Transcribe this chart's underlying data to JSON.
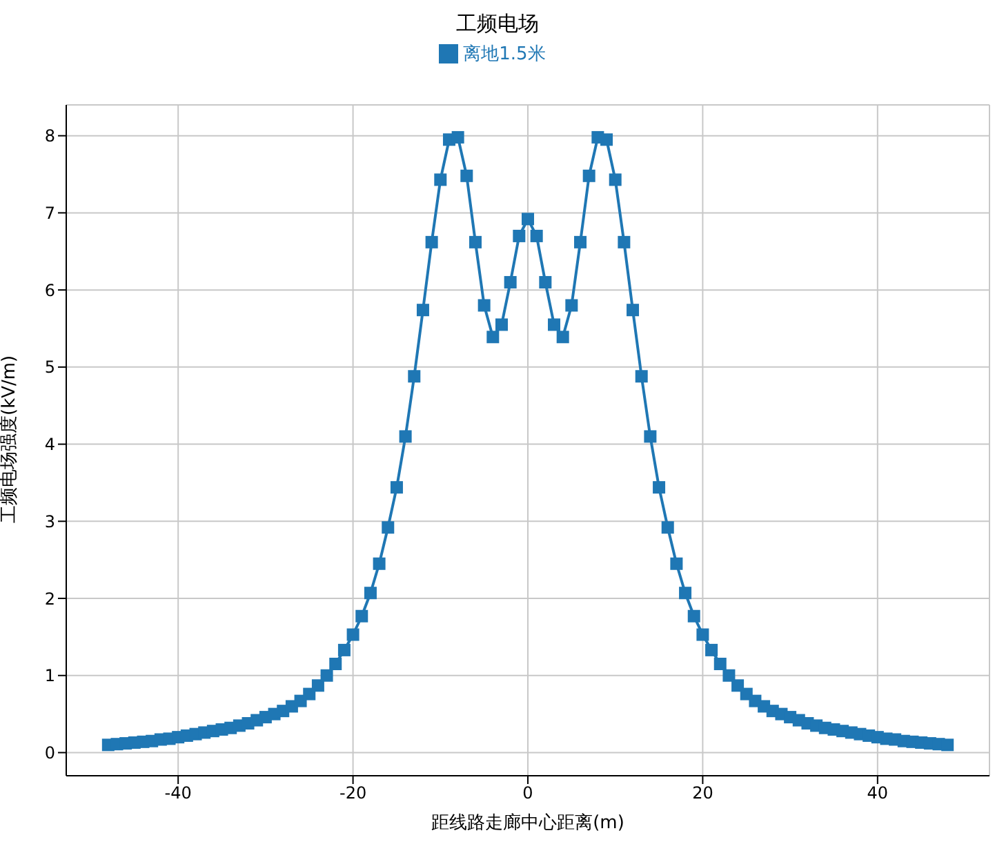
{
  "chart_data": {
    "type": "line",
    "title": "工频电场",
    "xlabel": "距线路走廊中心距离(m)",
    "ylabel": "工频电场强度(kV/m)",
    "x": [
      -48,
      -47,
      -46,
      -45,
      -44,
      -43,
      -42,
      -41,
      -40,
      -39,
      -38,
      -37,
      -36,
      -35,
      -34,
      -33,
      -32,
      -31,
      -30,
      -29,
      -28,
      -27,
      -26,
      -25,
      -24,
      -23,
      -22,
      -21,
      -20,
      -19,
      -18,
      -17,
      -16,
      -15,
      -14,
      -13,
      -12,
      -11,
      -10,
      -9,
      -8,
      -7,
      -6,
      -5,
      -4,
      -3,
      -2,
      -1,
      0,
      1,
      2,
      3,
      4,
      5,
      6,
      7,
      8,
      9,
      10,
      11,
      12,
      13,
      14,
      15,
      16,
      17,
      18,
      19,
      20,
      21,
      22,
      23,
      24,
      25,
      26,
      27,
      28,
      29,
      30,
      31,
      32,
      33,
      34,
      35,
      36,
      37,
      38,
      39,
      40,
      41,
      42,
      43,
      44,
      45,
      46,
      47,
      48
    ],
    "series": [
      {
        "name": "离地1.5米",
        "color": "#1f77b4",
        "values": [
          0.1,
          0.11,
          0.12,
          0.13,
          0.14,
          0.15,
          0.17,
          0.18,
          0.2,
          0.22,
          0.24,
          0.26,
          0.28,
          0.3,
          0.32,
          0.35,
          0.38,
          0.42,
          0.46,
          0.5,
          0.54,
          0.6,
          0.67,
          0.76,
          0.87,
          1.0,
          1.15,
          1.33,
          1.53,
          1.77,
          2.07,
          2.45,
          2.92,
          3.44,
          4.1,
          4.88,
          5.74,
          6.62,
          7.43,
          7.95,
          7.98,
          7.48,
          6.62,
          5.8,
          5.39,
          5.55,
          6.1,
          6.7,
          6.92,
          6.7,
          6.1,
          5.55,
          5.39,
          5.8,
          6.62,
          7.48,
          7.98,
          7.95,
          7.43,
          6.62,
          5.74,
          4.88,
          4.1,
          3.44,
          2.92,
          2.45,
          2.07,
          1.77,
          1.53,
          1.33,
          1.15,
          1.0,
          0.87,
          0.76,
          0.67,
          0.6,
          0.54,
          0.5,
          0.46,
          0.42,
          0.38,
          0.35,
          0.32,
          0.3,
          0.28,
          0.26,
          0.24,
          0.22,
          0.2,
          0.18,
          0.17,
          0.15,
          0.14,
          0.13,
          0.12,
          0.11,
          0.1
        ]
      }
    ],
    "xlim": [
      -52.8,
      52.8
    ],
    "xticks": [
      -40,
      -20,
      0,
      20,
      40
    ],
    "ylim": [
      -0.3,
      8.4
    ],
    "yticks": [
      0,
      1,
      2,
      3,
      4,
      5,
      6,
      7,
      8
    ],
    "grid": true,
    "legend": "top",
    "marker": "square",
    "line_style": "solid"
  }
}
